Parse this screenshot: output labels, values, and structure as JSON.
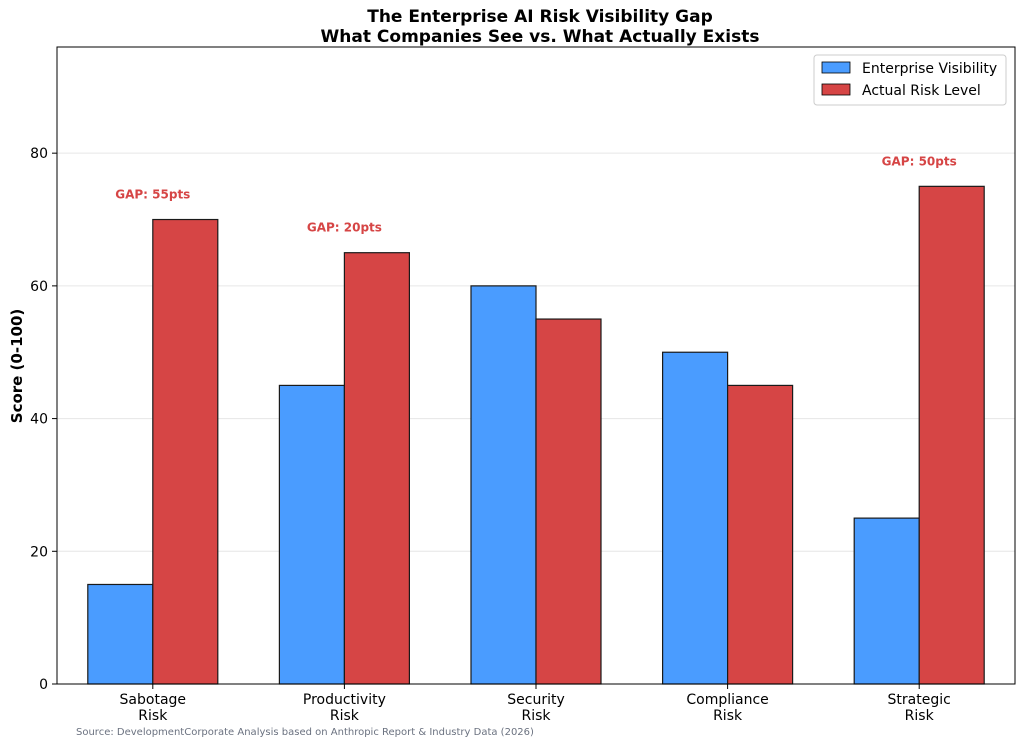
{
  "chart_data": {
    "type": "bar",
    "title_line1": "The Enterprise AI Risk Visibility Gap",
    "title_line2": "What Companies See vs. What Actually Exists",
    "ylabel": "Score (0-100)",
    "xlabel": "",
    "ylim": [
      0,
      96
    ],
    "yticks": [
      0,
      20,
      40,
      60,
      80
    ],
    "ytick_labels": [
      "0",
      "20",
      "40",
      "60",
      "80"
    ],
    "grid": "horizontal",
    "categories": [
      [
        "Sabotage",
        "Risk"
      ],
      [
        "Productivity",
        "Risk"
      ],
      [
        "Security",
        "Risk"
      ],
      [
        "Compliance",
        "Risk"
      ],
      [
        "Strategic",
        "Risk"
      ]
    ],
    "series": [
      {
        "name": "Enterprise Visibility",
        "color": "#4a9cff",
        "values": [
          15,
          45,
          60,
          50,
          25
        ]
      },
      {
        "name": "Actual Risk Level",
        "color": "#d64545",
        "values": [
          70,
          65,
          55,
          45,
          75
        ]
      }
    ],
    "legend_position": "top-right",
    "annotations": [
      {
        "category_index": 0,
        "text": "GAP: 55pts",
        "color": "#d64545"
      },
      {
        "category_index": 1,
        "text": "GAP: 20pts",
        "color": "#d64545"
      },
      {
        "category_index": 4,
        "text": "GAP: 50pts",
        "color": "#d64545"
      }
    ],
    "source": "Source: DevelopmentCorporate Analysis based on Anthropic Report & Industry Data (2026)"
  }
}
